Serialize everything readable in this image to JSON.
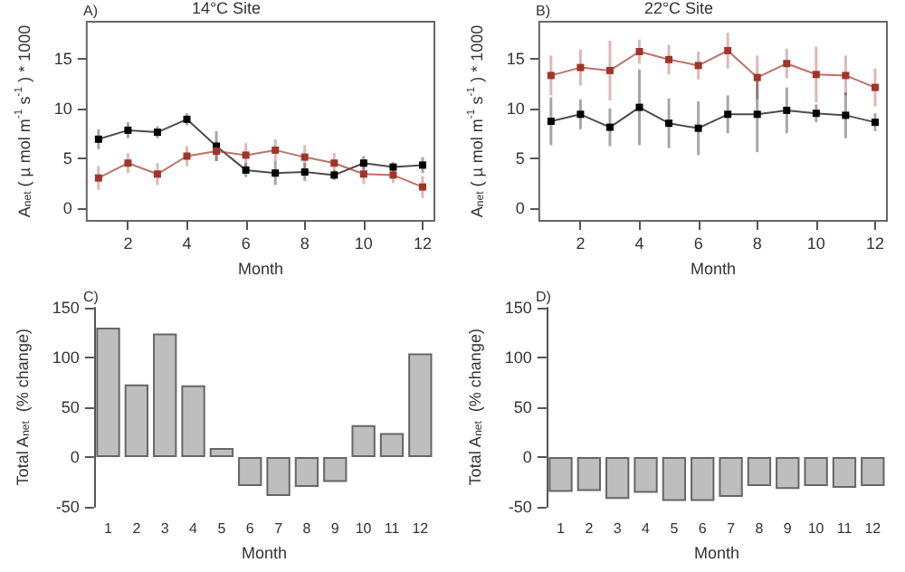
{
  "chart_data": [
    {
      "type": "line",
      "title": "14°C Site",
      "annotations": [
        "A)"
      ],
      "xlabel": "Month",
      "ylabel": "A$_{net}$ ( µ mol m$^{-1}$ s$^{-1}$ ) * 1000",
      "x": [
        1,
        2,
        3,
        4,
        5,
        6,
        7,
        8,
        9,
        10,
        11,
        12
      ],
      "xlim": [
        0.6,
        12.4
      ],
      "xticks": [
        2,
        4,
        6,
        8,
        10,
        12
      ],
      "ylim": [
        -1.3,
        18.7
      ],
      "yticks": [
        0,
        5,
        10,
        15
      ],
      "marker": "square",
      "line_style": "solid",
      "series": [
        {
          "color": "#000000",
          "values": [
            6.9,
            7.8,
            7.6,
            8.9,
            6.2,
            3.8,
            3.5,
            3.6,
            3.3,
            4.5,
            4.1,
            4.3
          ],
          "errors": [
            1,
            0.8,
            0.6,
            0.6,
            1.5,
            0.7,
            1.2,
            0.9,
            0.5,
            0.7,
            0.5,
            0.8
          ]
        },
        {
          "color": "#a0352a",
          "values": [
            3.0,
            4.5,
            3.4,
            5.2,
            5.7,
            5.3,
            5.8,
            5.1,
            4.5,
            3.4,
            3.3,
            2.1
          ],
          "errors": [
            1.2,
            1,
            1.1,
            1,
            1,
            1.2,
            1.1,
            1.2,
            1,
            1,
            0.8,
            1.1
          ]
        }
      ]
    },
    {
      "type": "line",
      "title": "22°C Site",
      "annotations": [
        "B)"
      ],
      "xlabel": "Month",
      "ylabel": "A$_{net}$ ( µ mol m$^{-1}$ s$^{-1}$ ) * 1000",
      "x": [
        1,
        2,
        3,
        4,
        5,
        6,
        7,
        8,
        9,
        10,
        11,
        12
      ],
      "xlim": [
        0.6,
        12.4
      ],
      "xticks": [
        2,
        4,
        6,
        8,
        10,
        12
      ],
      "ylim": [
        -1.3,
        18.7
      ],
      "yticks": [
        0,
        5,
        10,
        15
      ],
      "marker": "square",
      "line_style": "solid",
      "series": [
        {
          "color": "#a0352a",
          "values": [
            13.3,
            14.1,
            13.8,
            15.7,
            14.9,
            14.3,
            15.8,
            13.1,
            14.5,
            13.4,
            13.3,
            12.1
          ],
          "errors": [
            2,
            1.8,
            3,
            1.2,
            1.5,
            1.4,
            1.8,
            2.2,
            1.5,
            2.8,
            2,
            1.9
          ]
        },
        {
          "color": "#000000",
          "values": [
            8.7,
            9.4,
            8.1,
            10.1,
            8.5,
            8.0,
            9.4,
            9.4,
            9.8,
            9.5,
            9.3,
            8.6
          ],
          "errors": [
            2.4,
            1.5,
            1.9,
            3.8,
            2.5,
            2.7,
            1.9,
            3.8,
            2.3,
            0.9,
            2.3,
            0.9
          ]
        }
      ]
    },
    {
      "type": "bar",
      "annotations": [
        "C)"
      ],
      "xlabel": "Month",
      "ylabel": "Total A$_{net}$  (% change)",
      "categories": [
        "1",
        "2",
        "3",
        "4",
        "5",
        "6",
        "7",
        "8",
        "9",
        "10",
        "11",
        "12"
      ],
      "ylim": [
        -50,
        150
      ],
      "yticks": [
        -50,
        0,
        50,
        100,
        150
      ],
      "color": "#bebebe",
      "values": [
        130,
        73,
        124,
        72,
        9,
        -29,
        -39,
        -30,
        -25,
        32,
        24,
        104
      ]
    },
    {
      "type": "bar",
      "annotations": [
        "D)"
      ],
      "xlabel": "Month",
      "ylabel": "Total A$_{net}$  (% change)",
      "categories": [
        "1",
        "2",
        "3",
        "4",
        "5",
        "6",
        "7",
        "8",
        "9",
        "10",
        "11",
        "12"
      ],
      "ylim": [
        -50,
        150
      ],
      "yticks": [
        -50,
        0,
        50,
        100,
        150
      ],
      "color": "#bebebe",
      "values": [
        -35,
        -34,
        -42,
        -36,
        -44,
        -44,
        -40,
        -29,
        -32,
        -29,
        -31,
        -29
      ]
    }
  ]
}
